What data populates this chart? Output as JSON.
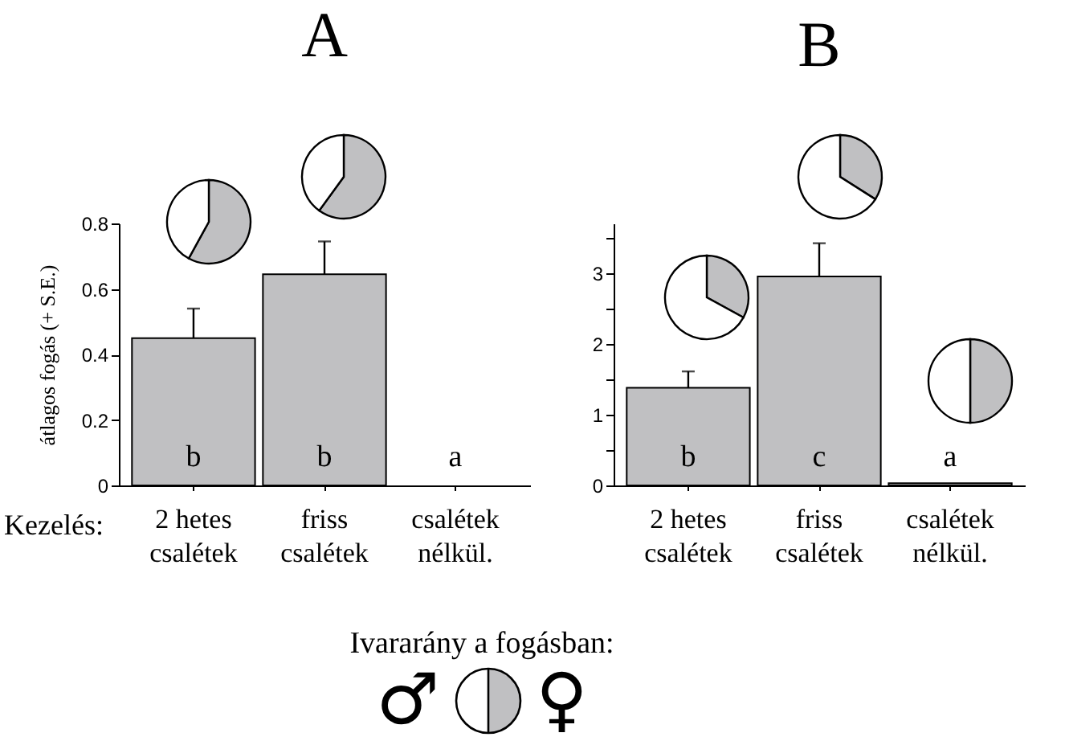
{
  "chart_data": [
    {
      "type": "bar",
      "title": "A",
      "ylabel": "átlagos fogás (+ S.E.)",
      "xlabel": "Kezelés:",
      "categories": [
        "2 hetes\ncsalétek",
        "friss\ncsalétek",
        "csalétek\nnélkül."
      ],
      "series": [
        {
          "color": "#c0c0c2",
          "values": [
            0.45,
            0.645,
            null
          ],
          "errors": [
            [
              0.45,
              0.54
            ],
            [
              0.645,
              0.745
            ],
            null
          ]
        }
      ],
      "ylim": [
        0,
        0.8
      ],
      "yticks": [
        0,
        0.2,
        0.4,
        0.6,
        0.8
      ],
      "annotations": [
        "b",
        "b",
        "a"
      ]
    },
    {
      "type": "bar",
      "title": "B",
      "categories": [
        "2 hetes\ncsalétek",
        "friss\ncsalétek",
        "csalétek\nnélkül."
      ],
      "series": [
        {
          "color": "#c0c0c2",
          "values": [
            1.38,
            2.95,
            0.03
          ],
          "errors": [
            [
              1.38,
              1.61
            ],
            [
              2.95,
              3.42
            ],
            null
          ]
        }
      ],
      "ylim": [
        0,
        3.7
      ],
      "yticks": [
        0,
        {
          "value": 0.5,
          "label": null
        },
        1,
        {
          "value": 1.5,
          "label": null
        },
        2,
        {
          "value": 2.5,
          "label": null
        },
        3,
        {
          "value": 3.5,
          "label": null
        }
      ],
      "annotations": [
        "b",
        "c",
        "a"
      ]
    },
    {
      "type": "pie",
      "categories": [
        null,
        null
      ],
      "values": [
        58,
        42
      ],
      "colors": [
        "#c0c0c2",
        "#ffffff"
      ]
    },
    {
      "type": "pie",
      "categories": [
        null,
        null
      ],
      "values": [
        60,
        40
      ],
      "colors": [
        "#c0c0c2",
        "#ffffff"
      ]
    },
    {
      "type": "pie",
      "categories": [
        null,
        null
      ],
      "values": [
        33,
        67
      ],
      "colors": [
        "#c0c0c2",
        "#ffffff"
      ]
    },
    {
      "type": "pie",
      "categories": [
        null,
        null
      ],
      "values": [
        34,
        66
      ],
      "colors": [
        "#c0c0c2",
        "#ffffff"
      ]
    },
    {
      "type": "pie",
      "categories": [
        null,
        null
      ],
      "values": [
        50,
        50
      ],
      "colors": [
        "#c0c0c2",
        "#ffffff"
      ]
    },
    {
      "type": "other",
      "title": "Ivararány a fogásban:",
      "annotations": [
        "♂",
        "♀"
      ]
    }
  ]
}
